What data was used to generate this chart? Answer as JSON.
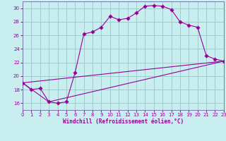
{
  "xlabel": "Windchill (Refroidissement éolien,°C)",
  "bg_color": "#c8eef0",
  "grid_color": "#a0cccc",
  "line_color": "#990099",
  "spine_color": "#7777aa",
  "xmin": 0,
  "xmax": 23,
  "ymin": 15.0,
  "ymax": 31.0,
  "yticks": [
    16,
    18,
    20,
    22,
    24,
    26,
    28,
    30
  ],
  "xticks": [
    0,
    1,
    2,
    3,
    4,
    5,
    6,
    7,
    8,
    9,
    10,
    11,
    12,
    13,
    14,
    15,
    16,
    17,
    18,
    19,
    20,
    21,
    22,
    23
  ],
  "line1_x": [
    0,
    1,
    2,
    3,
    4,
    5,
    6,
    7,
    8,
    9,
    10,
    11,
    12,
    13,
    14,
    15,
    16,
    17,
    18,
    19,
    20,
    21,
    22,
    23
  ],
  "line1_y": [
    19.0,
    18.0,
    18.2,
    16.2,
    16.0,
    16.2,
    20.5,
    26.2,
    26.5,
    27.2,
    28.8,
    28.3,
    28.5,
    29.3,
    30.3,
    30.4,
    30.3,
    29.8,
    28.0,
    27.5,
    27.2,
    23.0,
    22.5,
    22.2
  ],
  "line2_x": [
    0,
    3,
    23
  ],
  "line2_y": [
    19.0,
    16.2,
    22.2
  ],
  "line3_x": [
    0,
    23
  ],
  "line3_y": [
    19.0,
    22.2
  ],
  "ylabel_fontsize": 5.5,
  "tick_fontsize": 5.0
}
